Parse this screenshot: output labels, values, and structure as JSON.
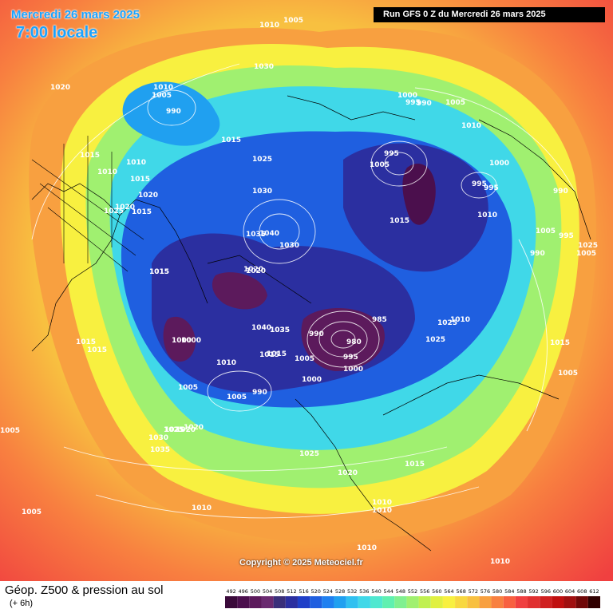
{
  "header": {
    "date": "Mercredi 26 mars 2025",
    "time": "7:00 locale",
    "run": "Run GFS 0 Z du Mercredi 26 mars 2025"
  },
  "footer": {
    "title": "Géop. Z500 & pression au sol",
    "subtitle": "(+ 6h)",
    "copyright": "Copyright © 2025 Meteociel.fr"
  },
  "legend": {
    "values": [
      "492",
      "496",
      "500",
      "504",
      "508",
      "512",
      "516",
      "520",
      "524",
      "528",
      "532",
      "536",
      "540",
      "544",
      "548",
      "552",
      "556",
      "560",
      "564",
      "568",
      "572",
      "576",
      "580",
      "584",
      "588",
      "592",
      "596",
      "600",
      "604",
      "608",
      "612"
    ],
    "colors": [
      "#3a0a3a",
      "#4b0f4d",
      "#5c1a5c",
      "#6a2a70",
      "#3a2f7a",
      "#2b2fa0",
      "#1f3fc8",
      "#1f5fe0",
      "#1f80f0",
      "#20a0f0",
      "#30c0f0",
      "#40d8e8",
      "#50e8d0",
      "#60f0b0",
      "#80f090",
      "#a0f070",
      "#c0f050",
      "#e0f040",
      "#f8f040",
      "#f8d840",
      "#f8c040",
      "#f8a040",
      "#f88040",
      "#f86040",
      "#f04040",
      "#e03030",
      "#d02020",
      "#c01010",
      "#a01010",
      "#700808",
      "#300000"
    ]
  },
  "pressure_labels": [
    "1010",
    "1005",
    "1030",
    "1020",
    "1010",
    "1005",
    "990",
    "1015",
    "1025",
    "1015",
    "1010",
    "1010",
    "1015",
    "1020",
    "1025",
    "1020",
    "1015",
    "1030",
    "1040",
    "1035",
    "1000",
    "995",
    "990",
    "1005",
    "1010",
    "995",
    "1005",
    "1015",
    "1000",
    "995",
    "995",
    "1010",
    "990",
    "1005",
    "995",
    "985",
    "990",
    "1005",
    "1020",
    "1015",
    "1015",
    "1010",
    "1000",
    "1005",
    "1025",
    "1030",
    "1020",
    "1010",
    "1005",
    "990",
    "1000",
    "1020",
    "1005",
    "1010",
    "1005",
    "1030",
    "1025",
    "1020",
    "1035",
    "1015",
    "1025",
    "1025",
    "1015",
    "1020",
    "1015",
    "1010",
    "1010",
    "1010",
    "1010",
    "1005",
    "1015",
    "1035",
    "1040",
    "1025",
    "1005",
    "1015",
    "1025",
    "990",
    "980",
    "1000",
    "995",
    "1035",
    "1000",
    "1015"
  ]
}
